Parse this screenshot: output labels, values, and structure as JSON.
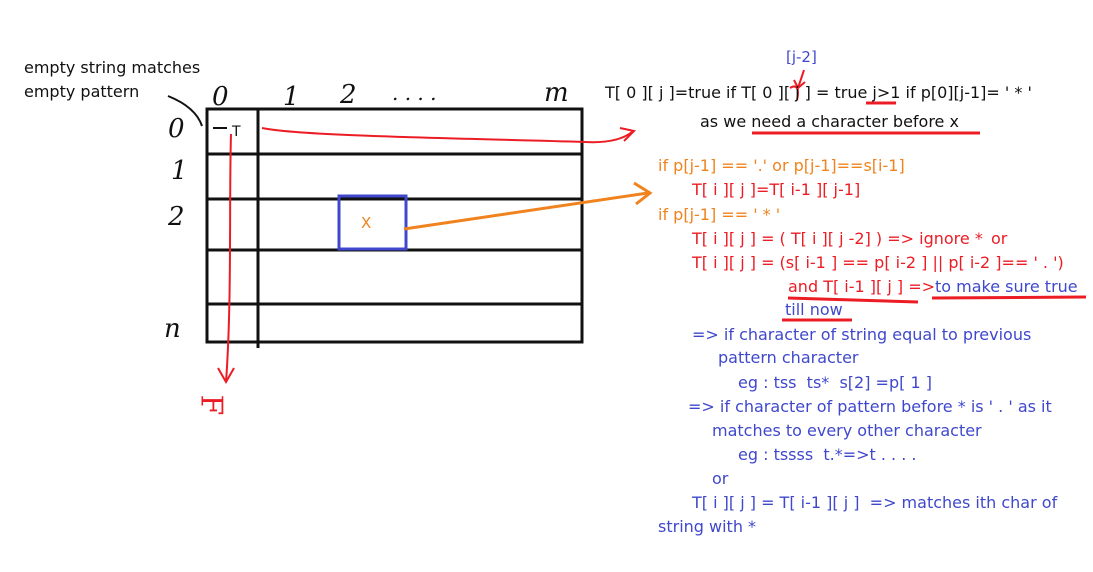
{
  "colors": {
    "ink": "#111111",
    "red": "#ec1c24",
    "orange": "#f0831e",
    "blue": "#3f48cc"
  },
  "note_empty": {
    "line1": "empty string matches",
    "line2": "empty pattern"
  },
  "grid": {
    "col_headers": [
      "0",
      "1",
      "2",
      ". . . .",
      "m"
    ],
    "row_headers": [
      "0",
      "1",
      "2",
      "n"
    ],
    "cell_t": "T",
    "cell_x": "X",
    "bottom_f": "F"
  },
  "base_rule": {
    "annotation": "[j-2]",
    "line1": "T[ 0 ][ j ]=true if T[ 0 ][ j ] = true j>1 if p[0][j-1]= ' * '",
    "line2": "as we need a character before x"
  },
  "rules": {
    "cond1": "if p[j-1] == '.' or p[j-1]==s[i-1]",
    "res1": "T[ i ][ j ]=T[ i-1 ][ j-1]",
    "cond2": "if p[j-1] == ' * '",
    "star_a": "T[ i ][ j ] = ( T[ i ][ j -2] ) => ignore *",
    "star_a_or": "or",
    "star_b": "T[ i ][ j ] = (s[ i-1 ] == p[ i-2 ] || p[ i-2 ]== ' . ')",
    "star_c": "and T[ i-1 ][ j ] =>",
    "star_c_note": "to make sure true",
    "star_c_note2": "till now"
  },
  "explain": {
    "e1a": "=> if character of string equal to previous",
    "e1b": "pattern character",
    "e1c": "eg : tss  ts*  s[2] =p[ 1 ]",
    "e2a": "=> if character of pattern before * is ' . ' as it",
    "e2b": "matches to every other character",
    "e2c": "eg : tssss  t.*=>t . . . .",
    "or": "or",
    "final_a": "T[ i ][ j ] = T[ i-1 ][ j ]  => matches ith char of",
    "final_b": "string with *"
  }
}
